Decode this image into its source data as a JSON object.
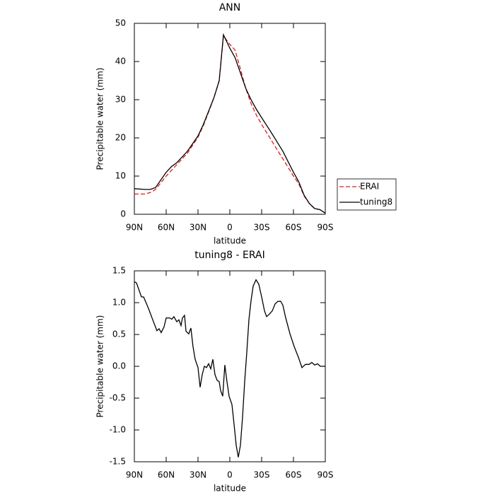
{
  "chart_data": [
    {
      "type": "line",
      "title": "ANN",
      "xlabel": "latitude",
      "ylabel": "Precipitable water (mm)",
      "x": [
        90,
        80,
        75,
        70,
        60,
        55,
        50,
        40,
        30,
        25,
        20,
        15,
        10,
        6,
        0,
        -5,
        -10,
        -15,
        -20,
        -25,
        -30,
        -40,
        -50,
        -60,
        -65,
        -70,
        -75,
        -80,
        -85,
        -90
      ],
      "series": [
        {
          "name": "ERAI",
          "color": "#e41a1c",
          "dashed": true,
          "values": [
            5.3,
            5.3,
            5.7,
            6.5,
            10,
            11.5,
            13,
            16,
            20.2,
            23.2,
            26.8,
            30.5,
            35,
            46.7,
            44.5,
            43,
            38,
            33,
            29,
            26,
            23.5,
            19,
            14.5,
            10,
            8,
            4.8,
            2.8,
            1.5,
            1.2,
            0.3
          ]
        },
        {
          "name": "tuning8",
          "color": "#000000",
          "dashed": false,
          "values": [
            6.7,
            6.5,
            6.5,
            7,
            11,
            12.5,
            13.5,
            16.5,
            20.5,
            23.5,
            27,
            30.5,
            35,
            47,
            43.5,
            41,
            37,
            33,
            30,
            27.5,
            25.3,
            21,
            16.5,
            11,
            8.5,
            5,
            2.8,
            1.5,
            1.2,
            0.3
          ]
        }
      ],
      "xlim": [
        90,
        -90
      ],
      "xticks": [
        {
          "value": 90,
          "label": "90N"
        },
        {
          "value": 60,
          "label": "60N"
        },
        {
          "value": 30,
          "label": "30N"
        },
        0,
        {
          "value": -30,
          "label": "30S"
        },
        {
          "value": -60,
          "label": "60S"
        },
        {
          "value": -90,
          "label": "90S"
        }
      ],
      "ylim": [
        0,
        50
      ],
      "yticks": [
        0,
        10,
        20,
        30,
        40,
        50
      ],
      "legend": "right"
    },
    {
      "type": "line",
      "title": "tuning8 - ERAI",
      "xlabel": "latitude",
      "ylabel": "Precipitable water (mm)",
      "x": [
        90,
        88,
        83.3,
        81.3,
        76.7,
        71.3,
        68.7,
        66.7,
        64.7,
        62,
        60,
        56.7,
        54.7,
        52.7,
        50,
        48,
        46,
        44.7,
        42.7,
        41.3,
        38.7,
        36.7,
        34.7,
        32.7,
        30,
        28,
        26,
        24,
        22,
        20,
        18,
        16,
        14,
        12,
        10,
        8.7,
        6.7,
        4.7,
        2.7,
        0.7,
        -2,
        -4,
        -6,
        -8,
        -10,
        -12,
        -14,
        -16,
        -18,
        -20,
        -22,
        -24.7,
        -27.3,
        -30,
        -32.7,
        -34.7,
        -37.3,
        -40,
        -42.7,
        -45.3,
        -48,
        -50,
        -52.7,
        -56.7,
        -60.7,
        -64.7,
        -68,
        -71.3,
        -74.7,
        -77.3,
        -80,
        -82.7,
        -85.3,
        -90
      ],
      "values": [
        1.33,
        1.31,
        1.09,
        1.09,
        0.91,
        0.67,
        0.56,
        0.59,
        0.53,
        0.62,
        0.76,
        0.76,
        0.74,
        0.78,
        0.7,
        0.73,
        0.64,
        0.76,
        0.8,
        0.55,
        0.51,
        0.6,
        0.31,
        0.11,
        -0.02,
        -0.33,
        -0.13,
        0,
        -0.02,
        0.04,
        -0.04,
        0.11,
        -0.13,
        -0.22,
        -0.24,
        -0.38,
        -0.47,
        0.02,
        -0.24,
        -0.47,
        -0.6,
        -0.91,
        -1.24,
        -1.43,
        -1.24,
        -0.8,
        -0.24,
        0.22,
        0.73,
        1.03,
        1.26,
        1.36,
        1.29,
        1.09,
        0.87,
        0.78,
        0.82,
        0.87,
        0.98,
        1.02,
        1.02,
        0.96,
        0.76,
        0.51,
        0.31,
        0.14,
        -0.02,
        0.03,
        0.03,
        0.06,
        0.02,
        0.04,
        0,
        0
      ],
      "color": "#000000",
      "xlim": [
        90,
        -90
      ],
      "xticks": [
        {
          "value": 90,
          "label": "90N"
        },
        {
          "value": 60,
          "label": "60N"
        },
        {
          "value": 30,
          "label": "30N"
        },
        0,
        {
          "value": -30,
          "label": "30S"
        },
        {
          "value": -60,
          "label": "60S"
        },
        {
          "value": -90,
          "label": "90S"
        }
      ],
      "ylim": [
        -1.5,
        1.5
      ],
      "yticks": [
        -1.5,
        {
          "value": -1,
          "label": "-1.0"
        },
        -0.5,
        {
          "value": 0,
          "label": "0.0"
        },
        0.5,
        {
          "value": 1,
          "label": "1.0"
        },
        1.5
      ]
    }
  ]
}
